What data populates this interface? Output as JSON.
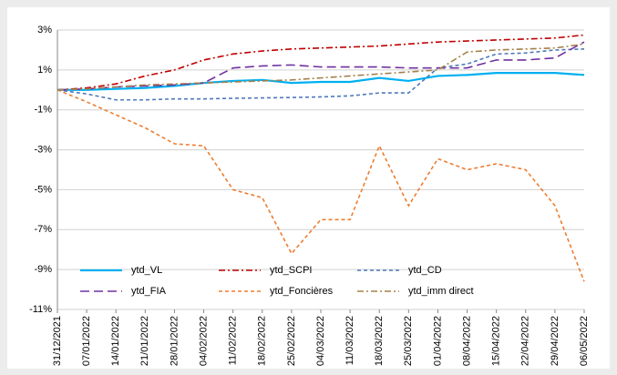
{
  "chart_data": {
    "type": "line",
    "categories": [
      "31/12/2021",
      "07/01/2022",
      "14/01/2022",
      "21/01/2022",
      "28/01/2022",
      "04/02/2022",
      "11/02/2022",
      "18/02/2022",
      "25/02/2022",
      "04/03/2022",
      "11/03/2022",
      "18/03/2022",
      "25/03/2022",
      "01/04/2022",
      "08/04/2022",
      "15/04/2022",
      "22/04/2022",
      "29/04/2022",
      "06/05/2022"
    ],
    "series": [
      {
        "name": "ytd_VL",
        "color": "#00b0f0",
        "dash": "solid",
        "values": [
          0,
          0,
          0.05,
          0.1,
          0.2,
          0.35,
          0.45,
          0.5,
          0.35,
          0.4,
          0.4,
          0.6,
          0.45,
          0.7,
          0.75,
          0.85,
          0.85,
          0.85,
          0.75
        ]
      },
      {
        "name": "ytd_SCPI",
        "color": "#c00000",
        "dash": "dashdot",
        "values": [
          0,
          0.1,
          0.3,
          0.7,
          1.0,
          1.5,
          1.8,
          1.95,
          2.05,
          2.1,
          2.15,
          2.2,
          2.3,
          2.4,
          2.45,
          2.5,
          2.55,
          2.6,
          2.75
        ]
      },
      {
        "name": "ytd_CD",
        "color": "#4f7ab8",
        "dash": "dashed",
        "values": [
          0,
          -0.2,
          -0.5,
          -0.5,
          -0.45,
          -0.45,
          -0.42,
          -0.4,
          -0.38,
          -0.35,
          -0.3,
          -0.15,
          -0.15,
          1.1,
          1.3,
          1.8,
          1.85,
          2.0,
          2.05
        ]
      },
      {
        "name": "ytd_FIA",
        "color": "#7030a0",
        "dash": "longdash",
        "values": [
          0,
          0.05,
          0.15,
          0.2,
          0.25,
          0.35,
          1.1,
          1.2,
          1.25,
          1.15,
          1.15,
          1.15,
          1.1,
          1.1,
          1.1,
          1.5,
          1.5,
          1.6,
          2.4
        ]
      },
      {
        "name": "ytd_Foncières",
        "color": "#ed7d31",
        "dash": "dashed",
        "values": [
          0,
          -0.6,
          -1.25,
          -1.9,
          -2.7,
          -2.8,
          -5.0,
          -5.4,
          -8.2,
          -6.5,
          -6.5,
          -2.8,
          -5.8,
          -3.45,
          -4.0,
          -3.7,
          -4.0,
          -5.8,
          -9.6
        ]
      },
      {
        "name": "ytd_imm direct",
        "color": "#a5804a",
        "dash": "dashdot",
        "values": [
          0,
          0.05,
          0.15,
          0.25,
          0.3,
          0.35,
          0.4,
          0.45,
          0.5,
          0.6,
          0.7,
          0.8,
          0.9,
          1.0,
          1.9,
          2.0,
          2.05,
          2.1,
          2.3
        ]
      }
    ],
    "ylim": [
      -11,
      3
    ],
    "yticks": [
      {
        "value": 3,
        "label": "3%"
      },
      {
        "value": 1,
        "label": "1%"
      },
      {
        "value": -1,
        "label": "-1%"
      },
      {
        "value": -3,
        "label": "-3%"
      },
      {
        "value": -5,
        "label": "-5%"
      },
      {
        "value": -7,
        "label": "-7%"
      },
      {
        "value": -9,
        "label": "-9%"
      },
      {
        "value": -11,
        "label": "-11%"
      }
    ],
    "grid": true,
    "legend": "bottom-left"
  }
}
